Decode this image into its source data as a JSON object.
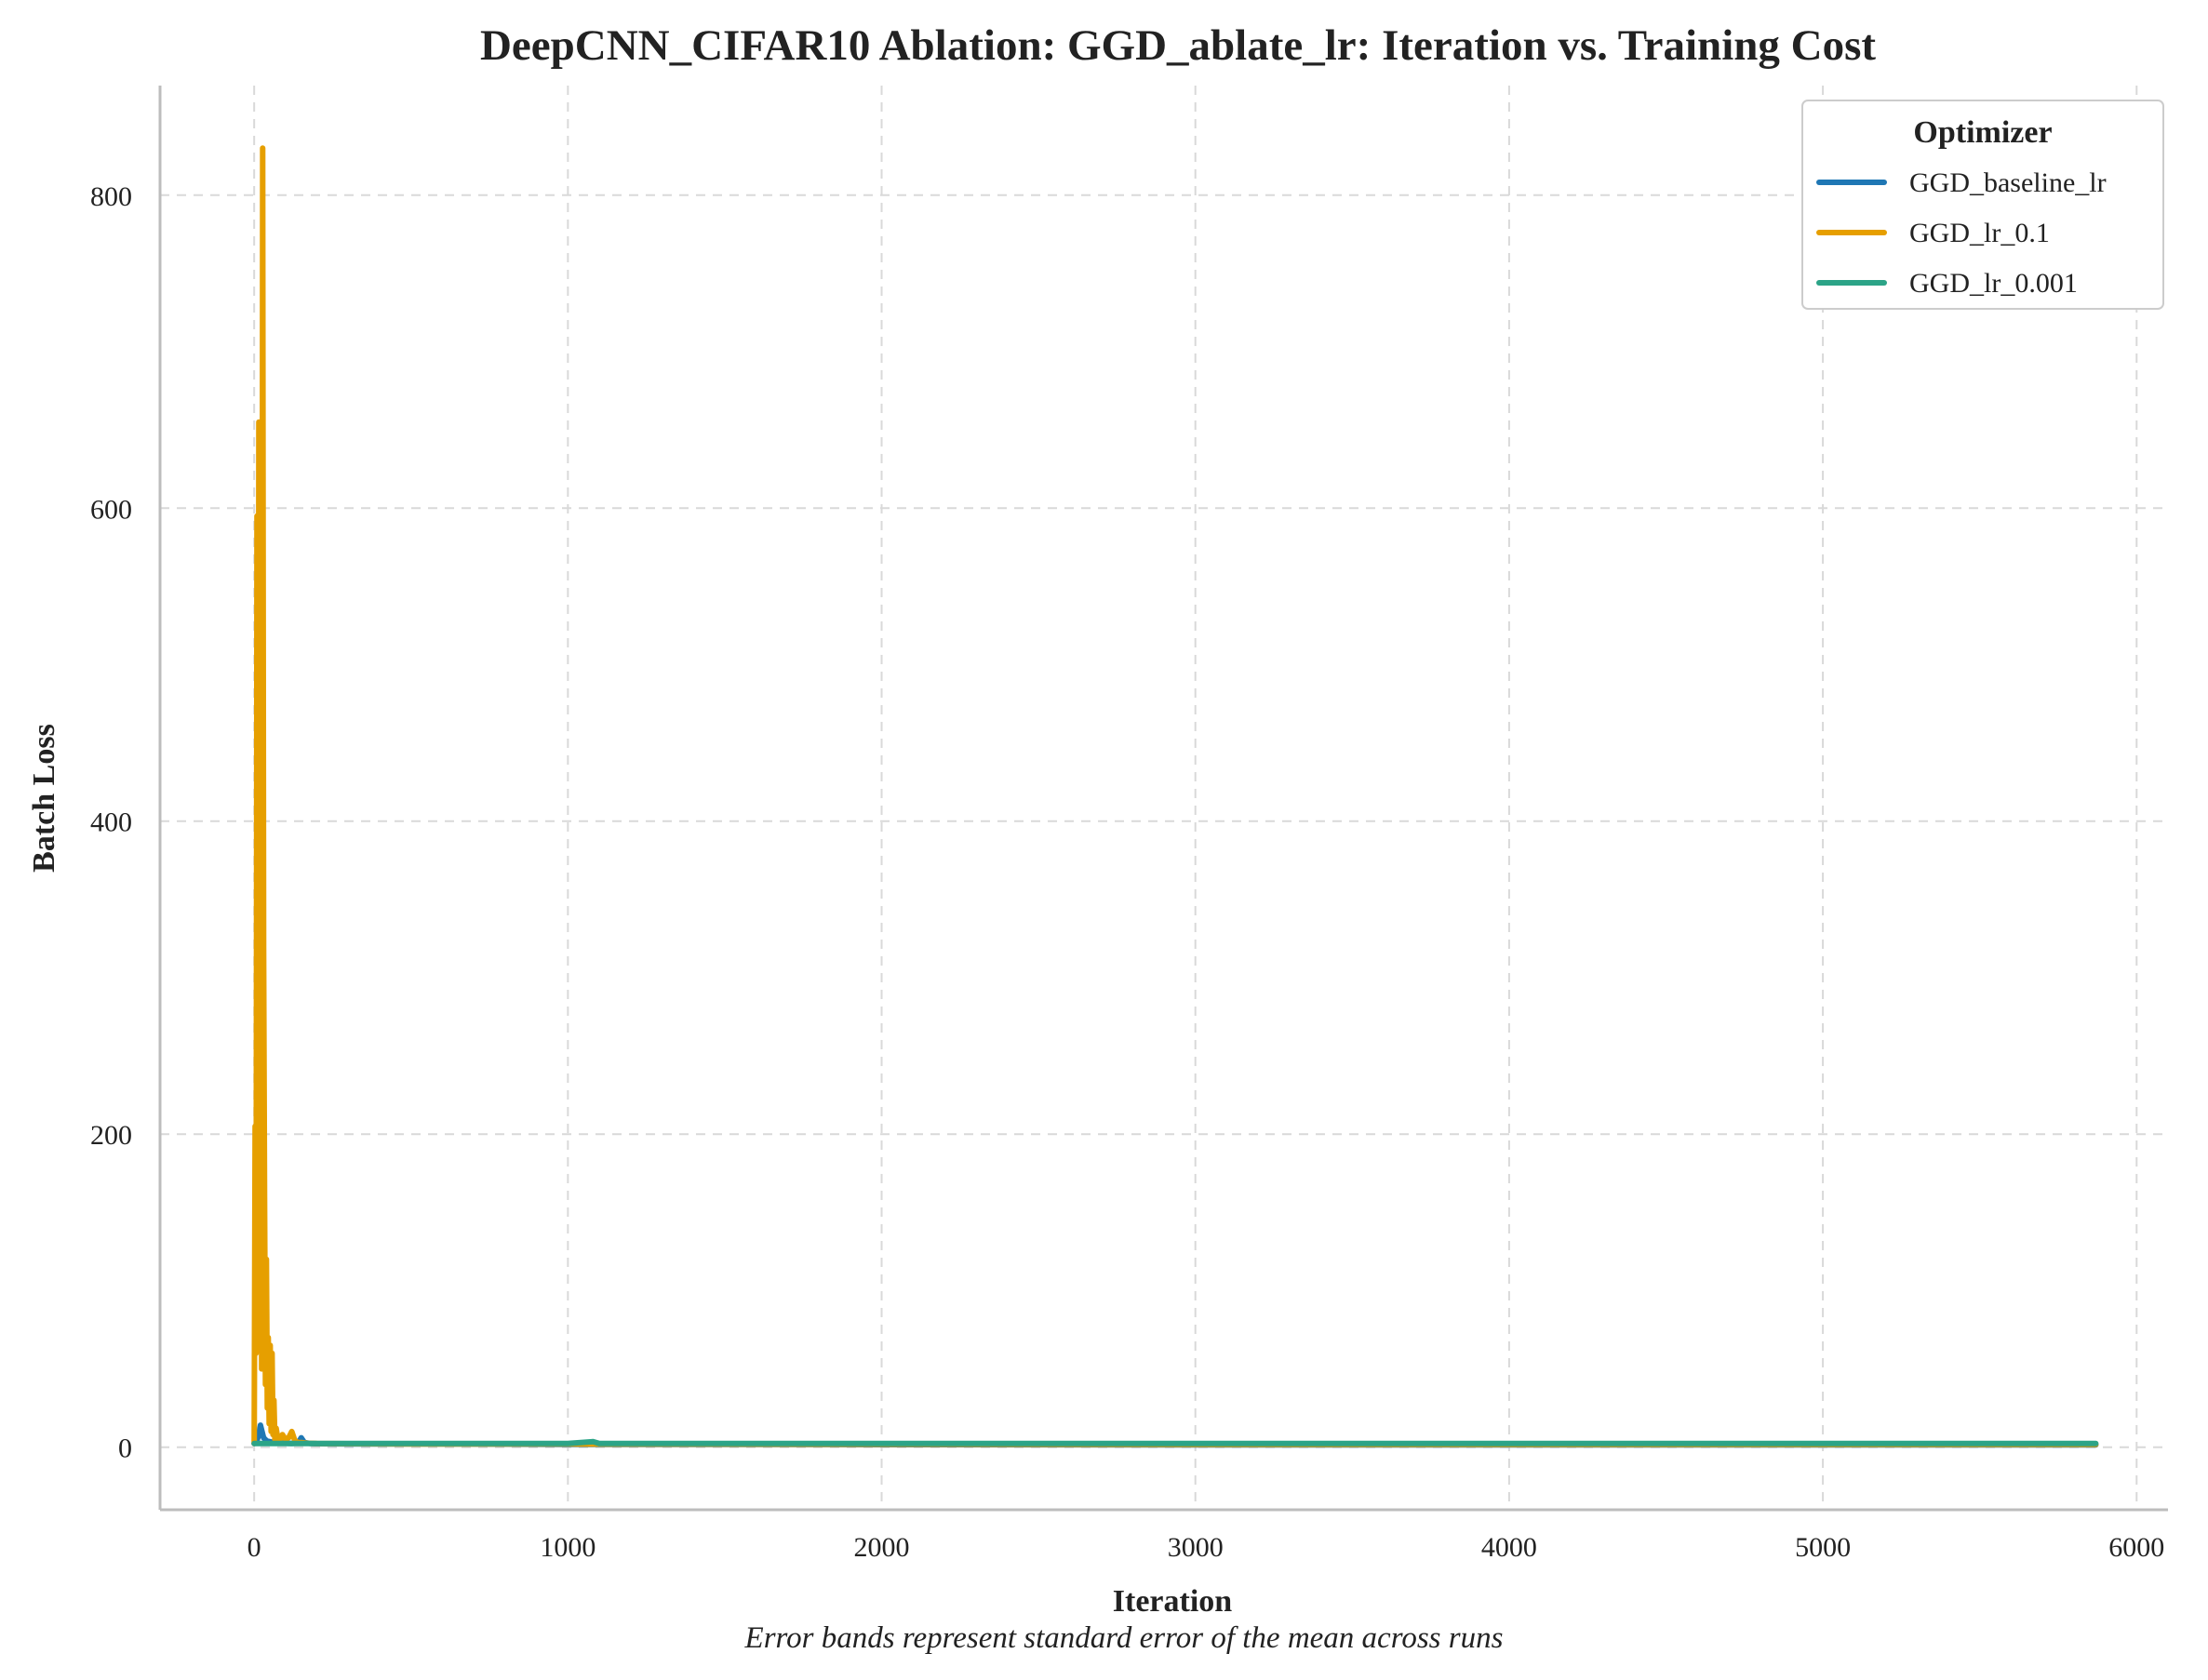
{
  "chart_data": {
    "type": "line",
    "title": "DeepCNN_CIFAR10 Ablation: GGD_ablate_lr: Iteration vs. Training Cost",
    "xlabel": "Iteration",
    "ylabel": "Batch Loss",
    "caption": "Error bands represent standard error of the mean across runs",
    "xlim": [
      -300,
      6100
    ],
    "ylim": [
      -40,
      870
    ],
    "xticks": [
      0,
      1000,
      2000,
      3000,
      4000,
      5000,
      6000
    ],
    "yticks": [
      0,
      200,
      400,
      600,
      800
    ],
    "xtick_labels": [
      "0",
      "1000",
      "2000",
      "3000",
      "4000",
      "5000",
      "6000"
    ],
    "ytick_labels": [
      "0",
      "200",
      "400",
      "600",
      "800"
    ],
    "grid": true,
    "legend": {
      "title": "Optimizer",
      "position": "top-right"
    },
    "series": [
      {
        "name": "GGD_baseline_lr",
        "color": "#1f77b4",
        "x": [
          0,
          5,
          10,
          15,
          20,
          25,
          30,
          40,
          50,
          60,
          80,
          100,
          120,
          140,
          150,
          160,
          180,
          200,
          300,
          500,
          800,
          1000,
          1500,
          2000,
          3000,
          4000,
          5000,
          5870
        ],
        "y": [
          2.3,
          3.0,
          5.0,
          8.0,
          14.0,
          10.0,
          6.0,
          4.0,
          3.5,
          3.0,
          2.8,
          2.5,
          2.4,
          2.6,
          6.0,
          3.0,
          2.3,
          2.2,
          2.1,
          2.0,
          1.9,
          1.8,
          1.7,
          1.6,
          1.5,
          1.5,
          1.4,
          1.4
        ]
      },
      {
        "name": "GGD_lr_0.1",
        "color": "#e69f00",
        "x": [
          0,
          3,
          6,
          9,
          12,
          15,
          18,
          21,
          24,
          27,
          30,
          33,
          36,
          39,
          42,
          45,
          48,
          51,
          54,
          57,
          60,
          63,
          66,
          70,
          75,
          80,
          90,
          100,
          110,
          120,
          130,
          140,
          150,
          170,
          200,
          300,
          500,
          1000,
          2000,
          3000,
          4000,
          5000,
          5870
        ],
        "y": [
          2.3,
          205,
          60,
          595,
          120,
          655,
          90,
          560,
          50,
          830,
          320,
          160,
          40,
          120,
          25,
          70,
          15,
          65,
          10,
          60,
          8,
          30,
          5,
          12,
          6,
          4,
          8,
          5,
          6,
          10,
          4,
          3,
          3,
          2.5,
          2.3,
          2.2,
          2.1,
          2.0,
          1.9,
          1.8,
          1.7,
          1.7,
          1.7
        ]
      },
      {
        "name": "GGD_lr_0.001",
        "color": "#2ca487",
        "x": [
          0,
          20,
          50,
          100,
          200,
          300,
          500,
          700,
          1000,
          1080,
          1100,
          1500,
          2000,
          2500,
          3000,
          3500,
          4000,
          4500,
          5000,
          5500,
          5870
        ],
        "y": [
          2.3,
          2.3,
          2.3,
          2.3,
          2.3,
          2.3,
          2.4,
          2.3,
          2.3,
          3.5,
          2.3,
          2.3,
          2.3,
          2.3,
          2.3,
          2.3,
          2.3,
          2.3,
          2.3,
          2.3,
          2.3
        ]
      }
    ]
  }
}
